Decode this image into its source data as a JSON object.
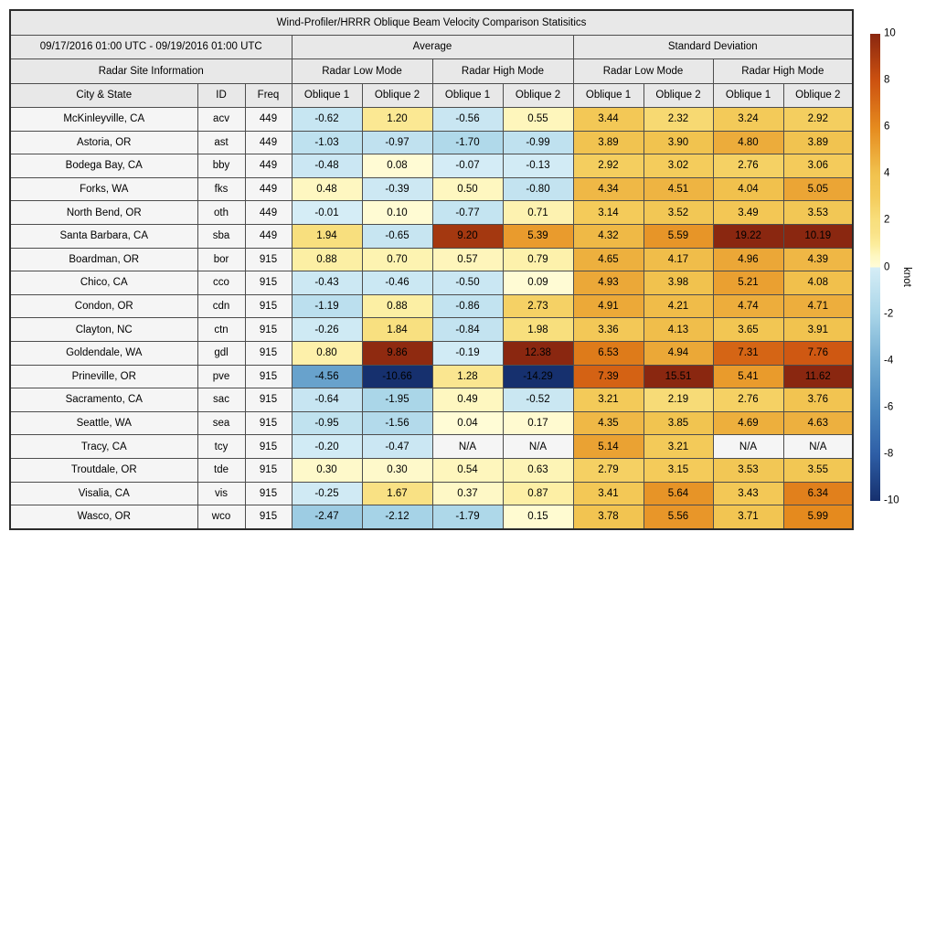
{
  "chart_data": {
    "type": "table",
    "subtype": "heatmap-table",
    "title": "Wind-Profiler/HRRR Oblique Beam Velocity Comparison Statisitics",
    "header": {
      "date_range": "09/17/2016 01:00 UTC - 09/19/2016 01:00 UTC",
      "site_info": "Radar Site Information",
      "sections": [
        "Average",
        "Standard Deviation"
      ],
      "mode_labels": [
        "Radar Low Mode",
        "Radar High Mode",
        "Radar Low Mode",
        "Radar High Mode"
      ],
      "col_labels": [
        "City & State",
        "ID",
        "Freq",
        "Oblique 1",
        "Oblique 2",
        "Oblique 1",
        "Oblique 2",
        "Oblique 1",
        "Oblique 2",
        "Oblique 1",
        "Oblique 2"
      ]
    },
    "na_label": "N/A",
    "rows": [
      {
        "city": "McKinleyville, CA",
        "id": "acv",
        "freq": "449",
        "values": [
          -0.62,
          1.2,
          -0.56,
          0.55,
          3.44,
          2.32,
          3.24,
          2.92
        ]
      },
      {
        "city": "Astoria, OR",
        "id": "ast",
        "freq": "449",
        "values": [
          -1.03,
          -0.97,
          -1.7,
          -0.99,
          3.89,
          3.9,
          4.8,
          3.89
        ]
      },
      {
        "city": "Bodega Bay, CA",
        "id": "bby",
        "freq": "449",
        "values": [
          -0.48,
          0.08,
          -0.07,
          -0.13,
          2.92,
          3.02,
          2.76,
          3.06
        ]
      },
      {
        "city": "Forks, WA",
        "id": "fks",
        "freq": "449",
        "values": [
          0.48,
          -0.39,
          0.5,
          -0.8,
          4.34,
          4.51,
          4.04,
          5.05
        ]
      },
      {
        "city": "North Bend, OR",
        "id": "oth",
        "freq": "449",
        "values": [
          -0.01,
          0.1,
          -0.77,
          0.71,
          3.14,
          3.52,
          3.49,
          3.53
        ]
      },
      {
        "city": "Santa Barbara, CA",
        "id": "sba",
        "freq": "449",
        "values": [
          1.94,
          -0.65,
          9.2,
          5.39,
          4.32,
          5.59,
          19.22,
          10.19
        ]
      },
      {
        "city": "Boardman, OR",
        "id": "bor",
        "freq": "915",
        "values": [
          0.88,
          0.7,
          0.57,
          0.79,
          4.65,
          4.17,
          4.96,
          4.39
        ]
      },
      {
        "city": "Chico, CA",
        "id": "cco",
        "freq": "915",
        "values": [
          -0.43,
          -0.46,
          -0.5,
          0.09,
          4.93,
          3.98,
          5.21,
          4.08
        ]
      },
      {
        "city": "Condon, OR",
        "id": "cdn",
        "freq": "915",
        "values": [
          -1.19,
          0.88,
          -0.86,
          2.73,
          4.91,
          4.21,
          4.74,
          4.71
        ]
      },
      {
        "city": "Clayton, NC",
        "id": "ctn",
        "freq": "915",
        "values": [
          -0.26,
          1.84,
          -0.84,
          1.98,
          3.36,
          4.13,
          3.65,
          3.91
        ]
      },
      {
        "city": "Goldendale, WA",
        "id": "gdl",
        "freq": "915",
        "values": [
          0.8,
          9.86,
          -0.19,
          12.38,
          6.53,
          4.94,
          7.31,
          7.76
        ]
      },
      {
        "city": "Prineville, OR",
        "id": "pve",
        "freq": "915",
        "values": [
          -4.56,
          -10.66,
          1.28,
          -14.29,
          7.39,
          15.51,
          5.41,
          11.62
        ]
      },
      {
        "city": "Sacramento, CA",
        "id": "sac",
        "freq": "915",
        "values": [
          -0.64,
          -1.95,
          0.49,
          -0.52,
          3.21,
          2.19,
          2.76,
          3.76
        ]
      },
      {
        "city": "Seattle, WA",
        "id": "sea",
        "freq": "915",
        "values": [
          -0.95,
          -1.56,
          0.04,
          0.17,
          4.35,
          3.85,
          4.69,
          4.63
        ]
      },
      {
        "city": "Tracy, CA",
        "id": "tcy",
        "freq": "915",
        "values": [
          -0.2,
          -0.47,
          null,
          null,
          5.14,
          3.21,
          null,
          null
        ]
      },
      {
        "city": "Troutdale, OR",
        "id": "tde",
        "freq": "915",
        "values": [
          0.3,
          0.3,
          0.54,
          0.63,
          2.79,
          3.15,
          3.53,
          3.55
        ]
      },
      {
        "city": "Visalia, CA",
        "id": "vis",
        "freq": "915",
        "values": [
          -0.25,
          1.67,
          0.37,
          0.87,
          3.41,
          5.64,
          3.43,
          6.34
        ]
      },
      {
        "city": "Wasco, OR",
        "id": "wco",
        "freq": "915",
        "values": [
          -2.47,
          -2.12,
          -1.79,
          0.15,
          3.78,
          5.56,
          3.71,
          5.99
        ]
      }
    ],
    "colorbar": {
      "label": "knot",
      "range": [
        -10,
        10
      ],
      "ticks": [
        10,
        8,
        6,
        4,
        2,
        0,
        -2,
        -4,
        -6,
        -8,
        -10
      ],
      "colormap_stops": [
        [
          -10,
          "#16306e"
        ],
        [
          -8,
          "#2e5ea6"
        ],
        [
          -6,
          "#4a87be"
        ],
        [
          -4,
          "#74add2"
        ],
        [
          -2,
          "#a9d5e8"
        ],
        [
          -0.005,
          "#d5edf6"
        ],
        [
          0.005,
          "#fffcd8"
        ],
        [
          0.5,
          "#fef7c0"
        ],
        [
          1,
          "#fcec9b"
        ],
        [
          1.5,
          "#f9e287"
        ],
        [
          2,
          "#f8df7d"
        ],
        [
          3,
          "#f4cc5c"
        ],
        [
          4,
          "#f1c24e"
        ],
        [
          6,
          "#e58a1e"
        ],
        [
          8,
          "#cc5110"
        ],
        [
          10,
          "#8a2710"
        ]
      ]
    }
  },
  "colors": {
    "header_bg": "#e8e8e8",
    "row_label_bg": "#f5f5f5",
    "na_bg": "#f5f5f5",
    "grid_line": "#4d4d4d",
    "outer_border": "#2b2b2b",
    "text": "#000000"
  }
}
